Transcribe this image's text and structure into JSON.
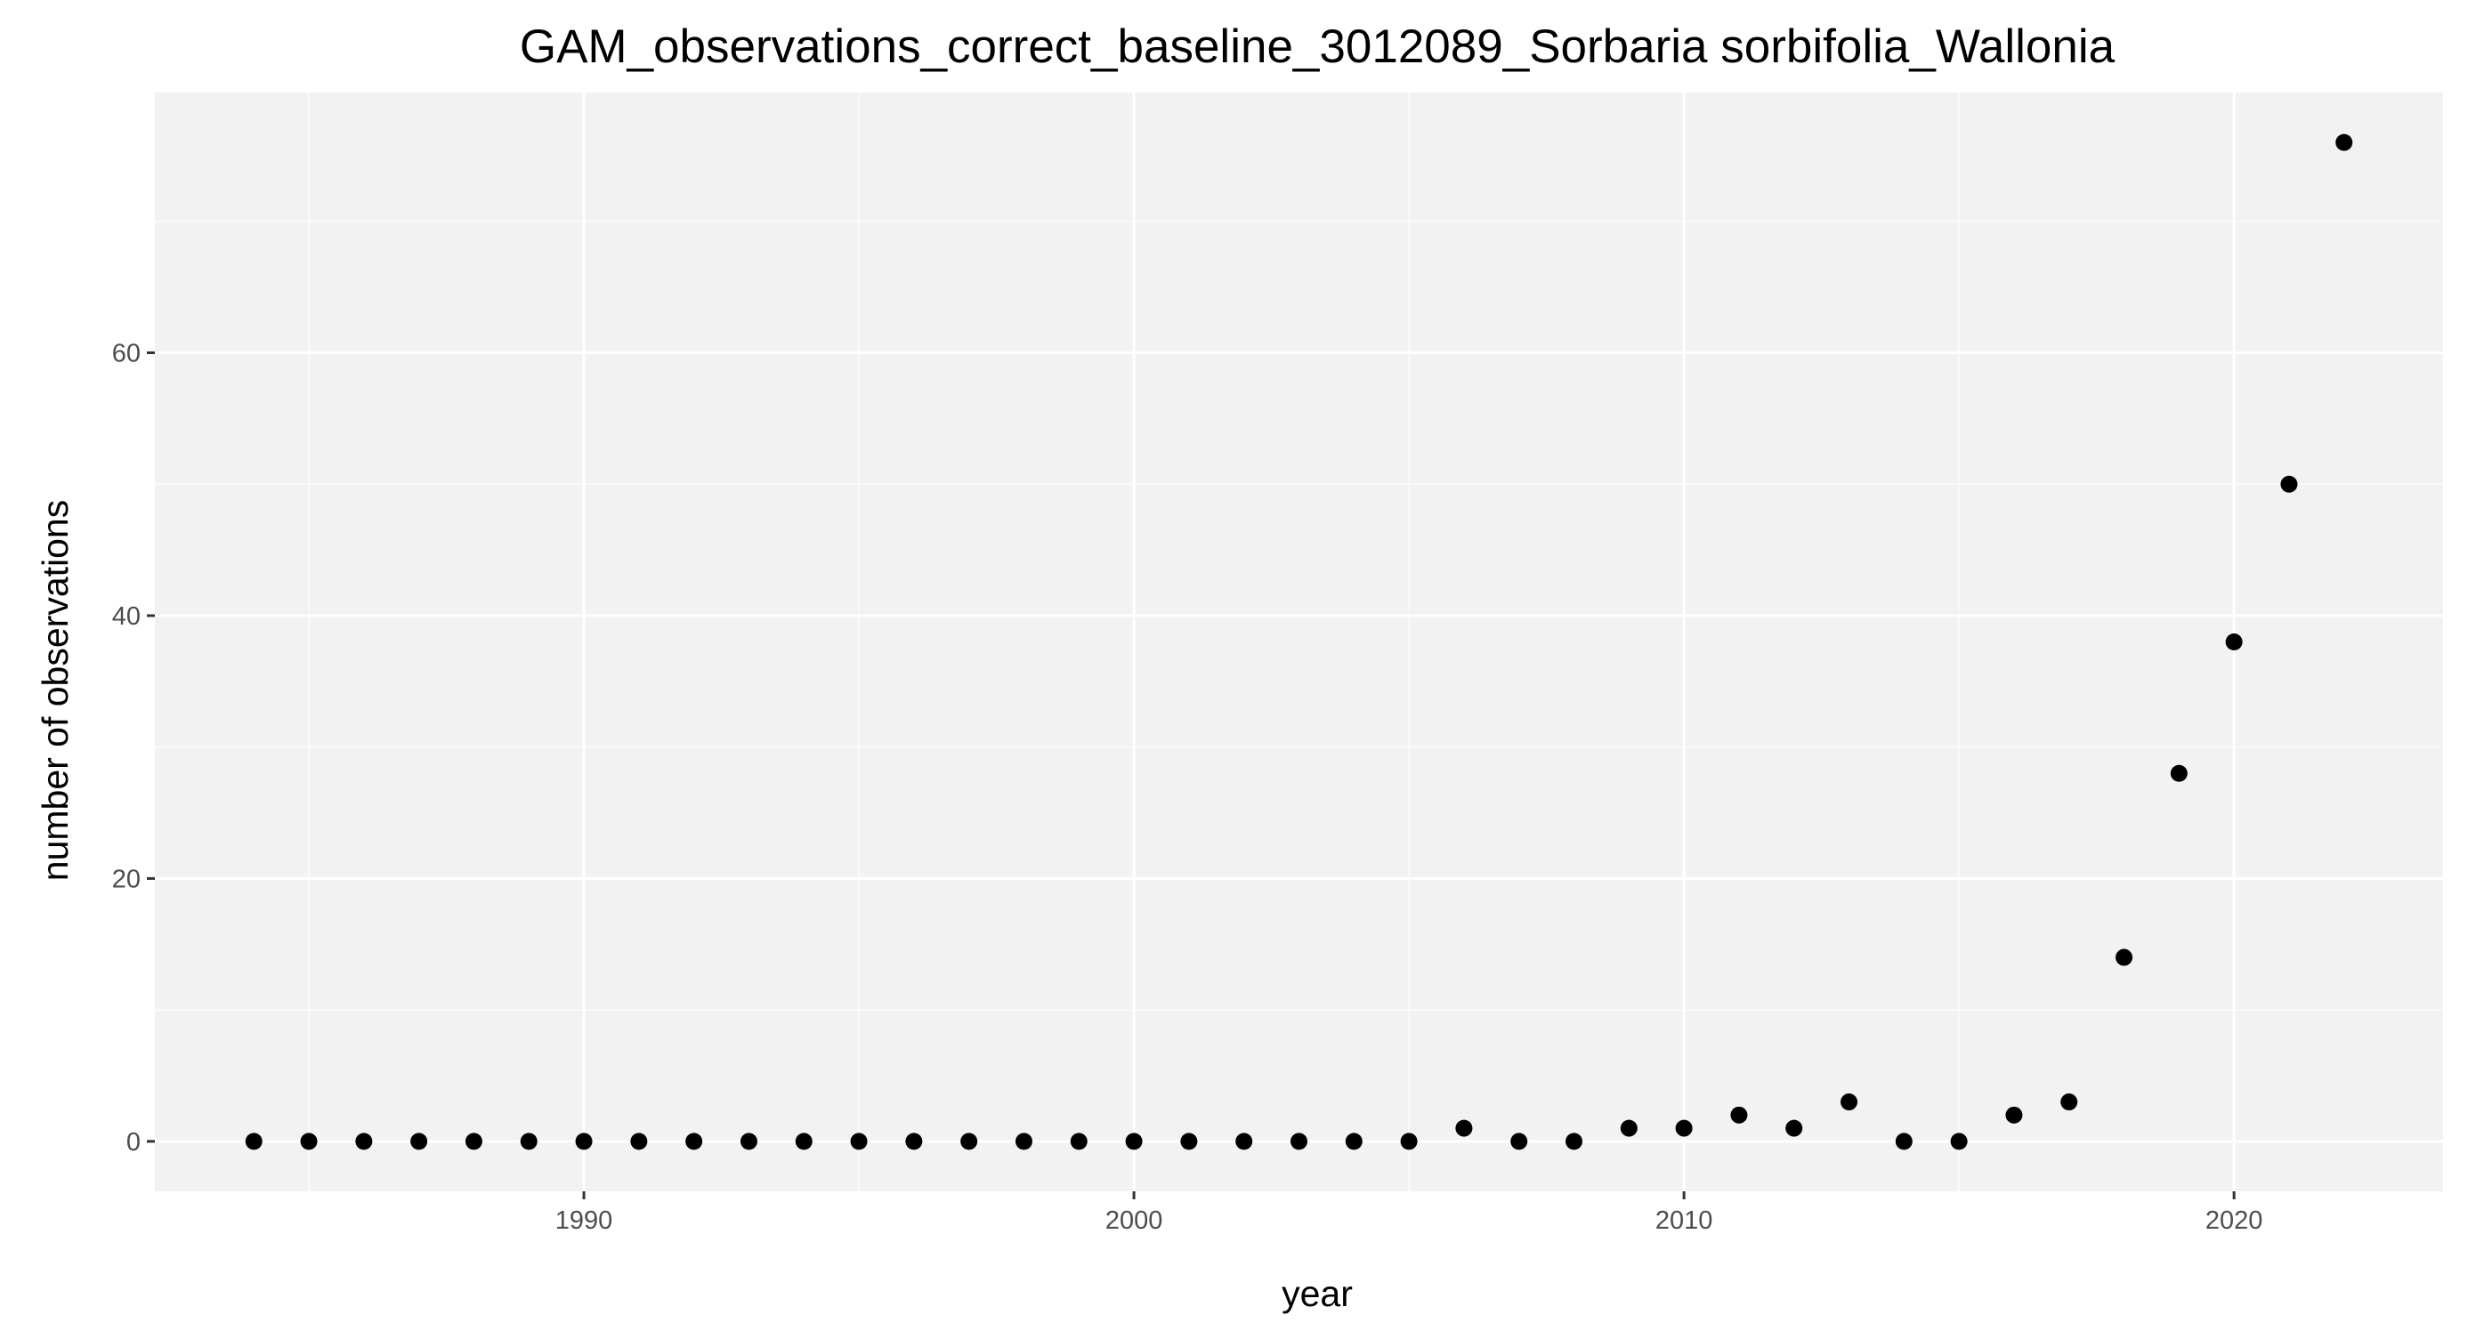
{
  "chart_data": {
    "type": "scatter",
    "title": "GAM_observations_correct_baseline_3012089_Sorbaria sorbifolia_Wallonia",
    "xlabel": "year",
    "ylabel": "number of observations",
    "xlim": [
      1982.2,
      2023.8
    ],
    "ylim": [
      -3.8,
      79.8
    ],
    "x_ticks": [
      1990,
      2000,
      2010,
      2020
    ],
    "y_ticks": [
      0,
      20,
      40,
      60
    ],
    "x_minor_ticks": [
      1985,
      1995,
      2005,
      2015
    ],
    "y_minor_ticks": [
      10,
      30,
      50,
      70
    ],
    "grid": true,
    "legend": "none",
    "colors": {
      "panel": "#f2f2f2",
      "grid_major": "#ffffff",
      "grid_minor": "#fafafa",
      "point": "#000000",
      "tick_text": "#4d4d4d",
      "tick_mark": "#333333"
    },
    "series": [
      {
        "x": [
          1984,
          1985,
          1986,
          1987,
          1988,
          1989,
          1990,
          1991,
          1992,
          1993,
          1994,
          1995,
          1996,
          1997,
          1998,
          1999,
          2000,
          2001,
          2002,
          2003,
          2004,
          2005,
          2006,
          2007,
          2008,
          2009,
          2010,
          2011,
          2012,
          2013,
          2014,
          2015,
          2016,
          2017,
          2018,
          2019,
          2020,
          2021,
          2022
        ],
        "y": [
          0,
          0,
          0,
          0,
          0,
          0,
          0,
          0,
          0,
          0,
          0,
          0,
          0,
          0,
          0,
          0,
          0,
          0,
          0,
          0,
          0,
          0,
          1,
          0,
          0,
          1,
          1,
          2,
          1,
          3,
          0,
          0,
          2,
          3,
          14,
          28,
          38,
          50,
          76
        ]
      }
    ]
  }
}
